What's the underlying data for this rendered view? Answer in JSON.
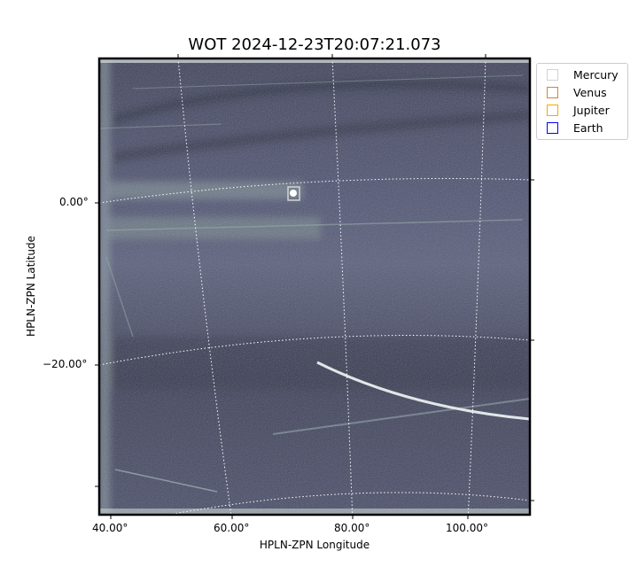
{
  "chart_data": {
    "type": "heatmap",
    "title": "WOT 2024-12-23T20:07:21.073",
    "xlabel": "HPLN-ZPN Longitude",
    "ylabel": "HPLN-ZPN Latitude",
    "x_tick_labels": [
      "40.00°",
      "60.00°",
      "80.00°",
      "100.00°"
    ],
    "y_tick_labels": [
      "0.00°",
      "−20.00°"
    ],
    "colormap": "bone",
    "grid": true,
    "legend_placement": "outside-top-right",
    "legend": [
      {
        "name": "Mercury",
        "color": "#d3d3d3"
      },
      {
        "name": "Venus",
        "color": "#cd853f"
      },
      {
        "name": "Jupiter",
        "color": "#ffa500"
      },
      {
        "name": "Earth",
        "color": "#0000ff"
      }
    ],
    "markers": [
      {
        "name": "Mercury",
        "lon": 70.5,
        "lat": 1.5
      }
    ]
  }
}
